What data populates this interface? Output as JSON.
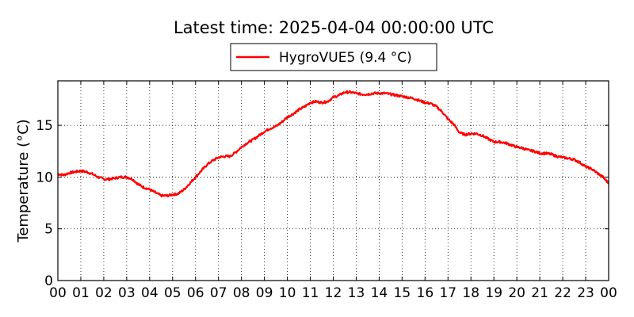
{
  "chart_data": {
    "type": "line",
    "title": "Latest time: 2025-04-04 00:00:00 UTC",
    "xlabel": "",
    "ylabel": "Temperature (°C)",
    "x_tick_labels": [
      "00",
      "01",
      "02",
      "03",
      "04",
      "05",
      "06",
      "07",
      "08",
      "09",
      "10",
      "11",
      "12",
      "13",
      "14",
      "15",
      "16",
      "17",
      "18",
      "19",
      "20",
      "21",
      "22",
      "23",
      "00"
    ],
    "xlim": [
      0,
      24
    ],
    "y_ticks": [
      0,
      5,
      10,
      15
    ],
    "ylim": [
      0,
      19.3
    ],
    "grid": true,
    "legend": {
      "position": "top-center",
      "entries": [
        "HygroVUE5 (9.4 °C)"
      ]
    },
    "series": [
      {
        "name": "HygroVUE5 (9.4 °C)",
        "color": "#ff0000",
        "x": [
          0,
          0.25,
          0.5,
          0.75,
          1,
          1.25,
          1.5,
          1.75,
          2,
          2.25,
          2.5,
          2.75,
          3,
          3.25,
          3.5,
          3.75,
          4,
          4.25,
          4.5,
          4.75,
          5,
          5.25,
          5.5,
          5.75,
          6,
          6.25,
          6.5,
          6.75,
          7,
          7.25,
          7.5,
          7.75,
          8,
          8.25,
          8.5,
          8.75,
          9,
          9.25,
          9.5,
          9.75,
          10,
          10.25,
          10.5,
          10.75,
          11,
          11.25,
          11.5,
          11.75,
          12,
          12.25,
          12.5,
          12.75,
          13,
          13.25,
          13.5,
          13.75,
          14,
          14.25,
          14.5,
          14.75,
          15,
          15.25,
          15.5,
          15.75,
          16,
          16.25,
          16.5,
          16.75,
          17,
          17.25,
          17.5,
          17.75,
          18,
          18.25,
          18.5,
          18.75,
          19,
          19.25,
          19.5,
          19.75,
          20,
          20.25,
          20.5,
          20.75,
          21,
          21.25,
          21.5,
          21.75,
          22,
          22.25,
          22.5,
          22.75,
          23,
          23.25,
          23.5,
          23.75,
          24
        ],
        "values": [
          10.3,
          10.2,
          10.4,
          10.5,
          10.6,
          10.5,
          10.3,
          10.0,
          9.8,
          9.8,
          9.9,
          10.0,
          10.0,
          9.8,
          9.3,
          9.0,
          8.8,
          8.5,
          8.2,
          8.2,
          8.3,
          8.4,
          8.8,
          9.4,
          10.0,
          10.6,
          11.2,
          11.6,
          11.9,
          12.0,
          12.0,
          12.4,
          12.9,
          13.3,
          13.6,
          14.0,
          14.4,
          14.7,
          14.9,
          15.3,
          15.8,
          16.1,
          16.5,
          16.8,
          17.2,
          17.3,
          17.2,
          17.3,
          17.7,
          17.9,
          18.2,
          18.2,
          18.1,
          18.0,
          18.0,
          18.1,
          18.1,
          18.1,
          18.0,
          17.9,
          17.8,
          17.7,
          17.6,
          17.4,
          17.2,
          17.1,
          16.8,
          16.3,
          15.6,
          15.1,
          14.3,
          14.1,
          14.2,
          14.2,
          14.0,
          13.7,
          13.4,
          13.4,
          13.3,
          13.1,
          12.9,
          12.8,
          12.6,
          12.5,
          12.3,
          12.3,
          12.2,
          12.0,
          11.9,
          11.8,
          11.7,
          11.4,
          11.0,
          10.8,
          10.4,
          10.0,
          9.4
        ]
      }
    ]
  }
}
